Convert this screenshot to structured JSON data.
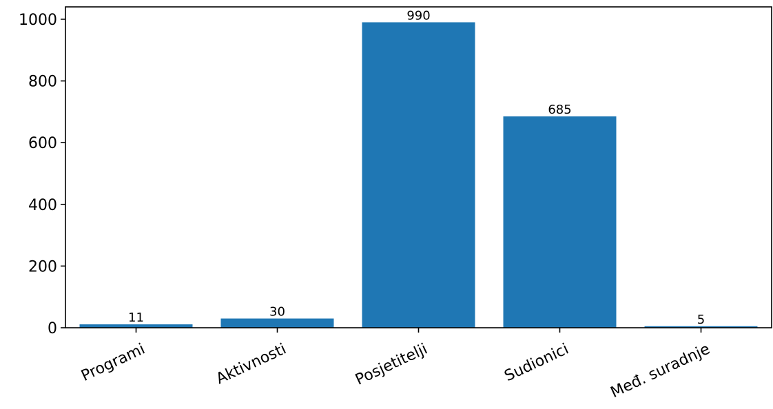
{
  "chart_data": {
    "type": "bar",
    "categories": [
      "Programi",
      "Aktivnosti",
      "Posjetitelji",
      "Sudionici",
      "Međ. suradnje"
    ],
    "values": [
      11,
      30,
      990,
      685,
      5
    ],
    "data_labels": [
      "11",
      "30",
      "990",
      "685",
      "5"
    ],
    "title": "",
    "xlabel": "",
    "ylabel": "",
    "ylim": [
      0,
      1040
    ],
    "yticks": [
      0,
      200,
      400,
      600,
      800,
      1000
    ],
    "ytick_labels": [
      "0",
      "200",
      "400",
      "600",
      "800",
      "1000"
    ],
    "grid": false,
    "legend": "none",
    "x_tick_rotation_deg": -25,
    "bar_color": "#1f77b4"
  }
}
